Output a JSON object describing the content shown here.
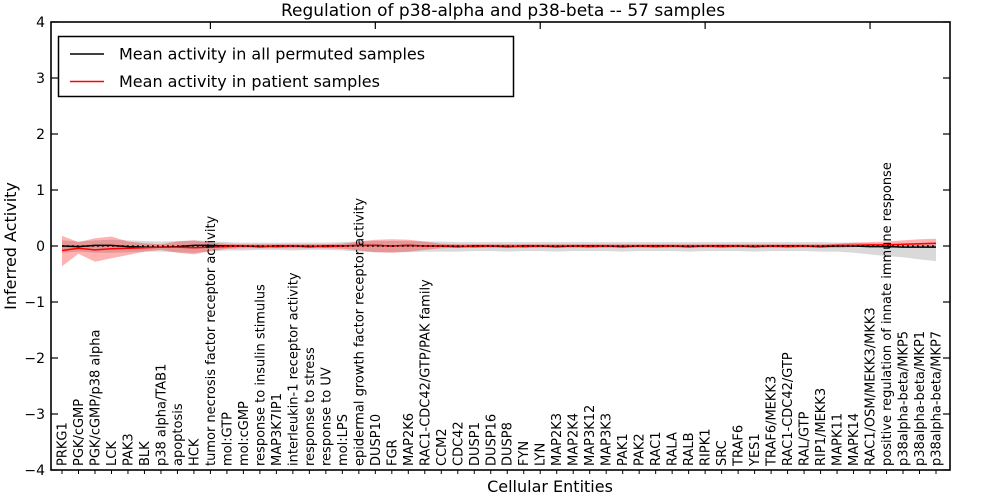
{
  "chart_data": {
    "type": "line",
    "title": "Regulation of p38-alpha and p38-beta -- 57 samples",
    "xlabel": "Cellular Entities",
    "ylabel": "Inferred Activity",
    "ylim": [
      -4,
      4
    ],
    "yticks": [
      4,
      3,
      2,
      1,
      0,
      -1,
      -2,
      -3,
      -4
    ],
    "ytick_labels": [
      "4",
      "3",
      "2",
      "1",
      "0",
      "−1",
      "−2",
      "−3",
      "−4"
    ],
    "grid": false,
    "legend_position": "upper left",
    "x_tick_label_rotation": 90,
    "categories": [
      "PRKG1",
      "PGK/cGMP",
      "PGK/cGMP/p38 alpha",
      "LCK",
      "PAK3",
      "BLK",
      "p38 alpha/TAB1",
      "apoptosis",
      "HCK",
      "tumor necrosis factor receptor activity",
      "mol:GTP",
      "mol:cGMP",
      "response to insulin stimulus",
      "MAP3K7IP1",
      "interleukin-1 receptor activity",
      "response to stress",
      "response to UV",
      "mol:LPS",
      "epidermal growth factor receptor activity",
      "DUSP10",
      "FGR",
      "MAP2K6",
      "RAC1-CDC42/GTP/PAK family",
      "CCM2",
      "CDC42",
      "DUSP1",
      "DUSP16",
      "DUSP8",
      "FYN",
      "LYN",
      "MAP2K3",
      "MAP2K4",
      "MAP3K12",
      "MAP3K3",
      "PAK1",
      "PAK2",
      "RAC1",
      "RALA",
      "RALB",
      "RIPK1",
      "SRC",
      "TRAF6",
      "YES1",
      "TRAF6/MEKK3",
      "RAC1-CDC42/GTP",
      "RAL/GTP",
      "RIP1/MEKK3",
      "MAPK11",
      "MAPK14",
      "RAC1/OSM/MEKK3/MKK3",
      "positive regulation of innate immune response",
      "p38alpha-beta/MKP5",
      "p38alpha-beta/MKP1",
      "p38alpha-beta/MKP7"
    ],
    "series": [
      {
        "name": "Mean activity in all permuted samples",
        "color": "#000000",
        "line_style": "solid",
        "values": [
          0,
          -0.01,
          0.01,
          0.01,
          -0.01,
          -0.02,
          -0.02,
          -0.01,
          0.01,
          0.01,
          0,
          0,
          -0.01,
          0,
          0,
          -0.01,
          0,
          0,
          0.01,
          0.01,
          0,
          0.01,
          0,
          0,
          -0.01,
          0,
          0,
          -0.01,
          0,
          0,
          -0.01,
          0,
          0,
          0,
          -0.01,
          0,
          0,
          0,
          -0.01,
          0,
          0,
          0,
          -0.01,
          0,
          0,
          0,
          -0.01,
          0,
          0,
          -0.01,
          -0.01,
          -0.02,
          -0.02,
          -0.02
        ],
        "band": {
          "color": "#9a9a9a",
          "opacity": 0.38,
          "hi": [
            0.1,
            0.08,
            0.1,
            0.11,
            0.1,
            0.09,
            0.08,
            0.09,
            0.1,
            0.09,
            0.07,
            0.06,
            0.06,
            0.06,
            0.06,
            0.06,
            0.06,
            0.07,
            0.08,
            0.09,
            0.09,
            0.09,
            0.08,
            0.08,
            0.07,
            0.07,
            0.07,
            0.07,
            0.07,
            0.07,
            0.07,
            0.07,
            0.07,
            0.07,
            0.07,
            0.07,
            0.07,
            0.07,
            0.07,
            0.07,
            0.07,
            0.07,
            0.07,
            0.07,
            0.07,
            0.07,
            0.07,
            0.06,
            0.06,
            0.05,
            0.04,
            0.04,
            0.03,
            0.03
          ],
          "lo": [
            -0.12,
            -0.1,
            -0.12,
            -0.12,
            -0.11,
            -0.1,
            -0.1,
            -0.11,
            -0.12,
            -0.1,
            -0.08,
            -0.08,
            -0.07,
            -0.07,
            -0.08,
            -0.07,
            -0.07,
            -0.08,
            -0.1,
            -0.11,
            -0.11,
            -0.11,
            -0.1,
            -0.1,
            -0.1,
            -0.09,
            -0.09,
            -0.1,
            -0.09,
            -0.09,
            -0.1,
            -0.09,
            -0.09,
            -0.09,
            -0.1,
            -0.09,
            -0.09,
            -0.09,
            -0.1,
            -0.09,
            -0.09,
            -0.09,
            -0.1,
            -0.09,
            -0.09,
            -0.09,
            -0.1,
            -0.1,
            -0.12,
            -0.15,
            -0.18,
            -0.2,
            -0.24,
            -0.27
          ]
        }
      },
      {
        "name": "Mean activity in patient samples",
        "color": "#ff0000",
        "line_style": "solid",
        "values": [
          -0.08,
          -0.04,
          -0.07,
          -0.05,
          -0.04,
          -0.03,
          -0.02,
          -0.02,
          -0.03,
          -0.02,
          -0.01,
          0,
          0,
          -0.01,
          0,
          0,
          -0.01,
          0,
          0.01,
          0.01,
          0,
          0.01,
          0,
          0,
          0,
          -0.01,
          0,
          0,
          -0.01,
          0,
          0,
          0,
          -0.01,
          0,
          0,
          0,
          -0.01,
          0,
          0,
          0,
          -0.01,
          0,
          0,
          0,
          -0.01,
          0,
          0,
          0.01,
          0.01,
          0.02,
          0.02,
          0.03,
          0.04,
          0.05
        ],
        "band": {
          "color": "#ff0000",
          "opacity": 0.3,
          "hi": [
            0.18,
            0.07,
            0.14,
            0.17,
            0.08,
            0.05,
            0.03,
            0.08,
            0.1,
            0.06,
            0.04,
            0.03,
            0.03,
            0.03,
            0.03,
            0.03,
            0.03,
            0.04,
            0.08,
            0.11,
            0.12,
            0.11,
            0.08,
            0.04,
            0.03,
            0.03,
            0.03,
            0.03,
            0.03,
            0.03,
            0.03,
            0.03,
            0.03,
            0.03,
            0.03,
            0.03,
            0.03,
            0.03,
            0.03,
            0.03,
            0.03,
            0.03,
            0.03,
            0.03,
            0.03,
            0.03,
            0.03,
            0.04,
            0.06,
            0.07,
            0.08,
            0.1,
            0.12,
            0.13
          ],
          "lo": [
            -0.36,
            -0.14,
            -0.28,
            -0.22,
            -0.16,
            -0.1,
            -0.07,
            -0.12,
            -0.15,
            -0.09,
            -0.05,
            -0.04,
            -0.04,
            -0.04,
            -0.04,
            -0.04,
            -0.04,
            -0.05,
            -0.08,
            -0.11,
            -0.12,
            -0.1,
            -0.07,
            -0.04,
            -0.03,
            -0.03,
            -0.03,
            -0.03,
            -0.03,
            -0.03,
            -0.03,
            -0.03,
            -0.03,
            -0.03,
            -0.03,
            -0.03,
            -0.03,
            -0.03,
            -0.03,
            -0.03,
            -0.03,
            -0.03,
            -0.03,
            -0.03,
            -0.03,
            -0.03,
            -0.03,
            -0.03,
            -0.02,
            -0.01,
            -0.01,
            0.0,
            0.0,
            -0.01
          ]
        }
      }
    ],
    "zero_line": {
      "y": 0,
      "style": "dotted",
      "color": "#000000"
    }
  }
}
